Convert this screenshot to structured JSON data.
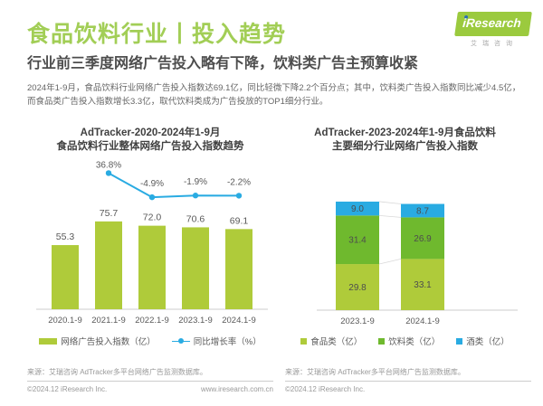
{
  "page": {
    "title": "食品饮料行业丨投入趋势",
    "subtitle": "行业前三季度网络广告投入略有下降，饮料类广告主预算收紧",
    "body": "2024年1-9月，食品饮料行业网络广告投入指数达69.1亿，同比轻微下降2.2个百分点；其中，饮料类广告投入指数同比减少4.5亿，而食品类广告投入指数增长3.3亿，取代饮料类成为广告投放的TOP1细分行业。"
  },
  "logo": {
    "brand": "iResearch",
    "brand_cn": "艾瑞咨询"
  },
  "colors": {
    "title_green": "#a2ce56",
    "green_light": "#afcb3a",
    "green_dark": "#6fb92e",
    "blue": "#29abe2",
    "label_gray": "#595959",
    "axis_gray": "#cccccc",
    "connector_gray": "#d9d9d9"
  },
  "chart_data": [
    {
      "type": "bar",
      "subtype": "bar+line-combo",
      "title": "AdTracker-2020-2024年1-9月\n食品饮料行业整体网络广告投入指数趋势",
      "categories": [
        "2020.1-9",
        "2021.1-9",
        "2022.1-9",
        "2023.1-9",
        "2024.1-9"
      ],
      "series": [
        {
          "name": "网络广告投入指数（亿）",
          "type": "bar",
          "values": [
            55.3,
            75.7,
            72.0,
            70.6,
            69.1
          ]
        },
        {
          "name": "同比增长率（%）",
          "type": "line",
          "values": [
            null,
            36.8,
            -4.9,
            -1.9,
            -2.2
          ]
        }
      ],
      "legend_position": "bottom",
      "grid": false,
      "value_labels": true
    },
    {
      "type": "bar",
      "subtype": "stacked-bar",
      "title": "AdTracker-2023-2024年1-9月食品饮料\n主要细分行业网络广告投入指数",
      "categories": [
        "2023.1-9",
        "2024.1-9"
      ],
      "series": [
        {
          "name": "食品类（亿）",
          "values": [
            29.8,
            33.1
          ],
          "color_key": "green_light"
        },
        {
          "name": "饮料类（亿）",
          "values": [
            31.4,
            26.9
          ],
          "color_key": "green_dark"
        },
        {
          "name": "酒类（亿）",
          "values": [
            9.0,
            8.7
          ],
          "color_key": "blue"
        }
      ],
      "legend_position": "bottom",
      "grid": false,
      "value_labels": true
    }
  ],
  "footer_left": {
    "source": "来源：艾瑞咨询 AdTracker多平台网络广告监测数据库。",
    "copyright": "©2024.12 iResearch Inc.",
    "website": "www.iresearch.com.cn"
  },
  "footer_right": {
    "source": "来源：艾瑞咨询 AdTracker多平台网络广告监测数据库。",
    "copyright": "©2024.12 iResearch Inc."
  }
}
